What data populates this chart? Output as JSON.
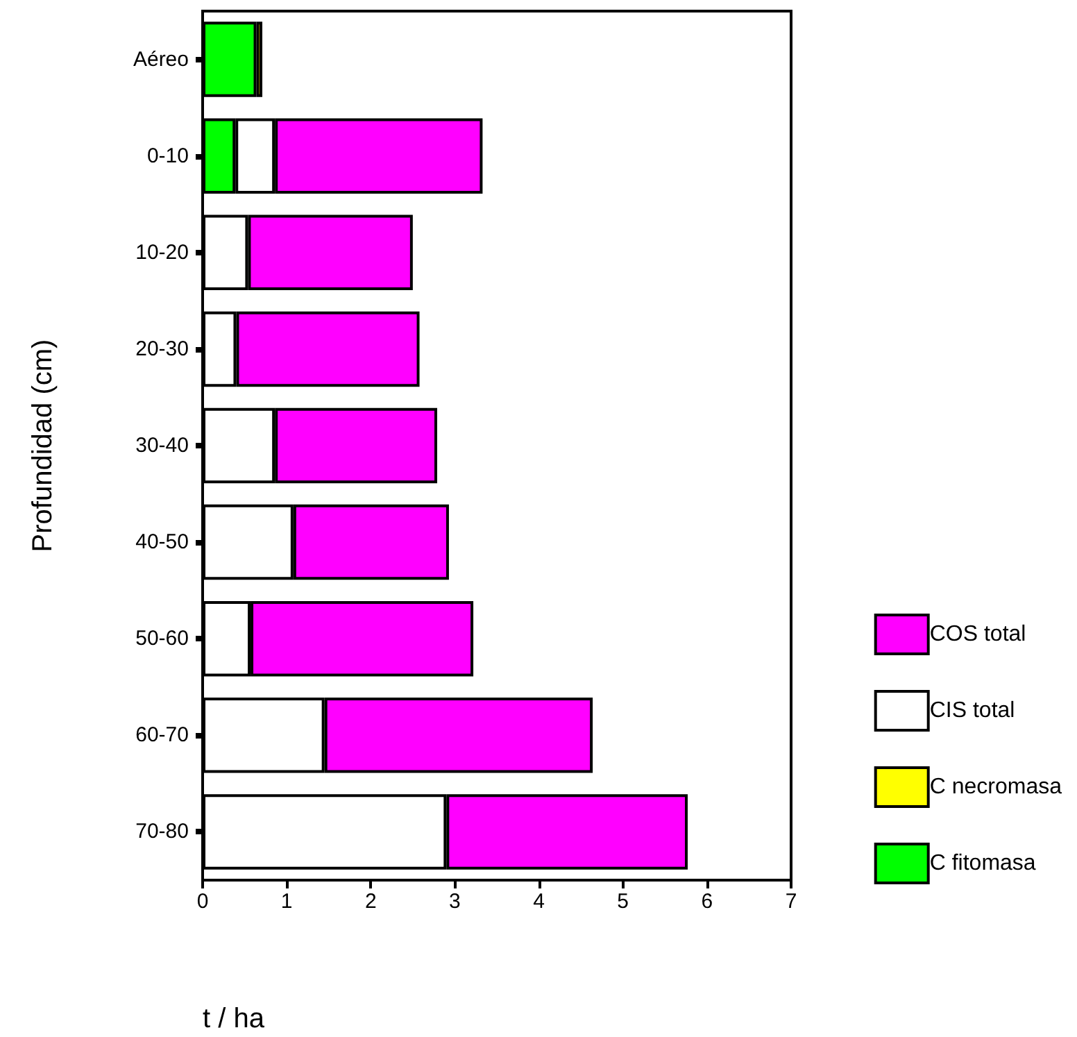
{
  "chart_data": {
    "type": "bar",
    "orientation": "horizontal",
    "stacked": true,
    "xlabel": "t / ha",
    "ylabel": "Profundidad (cm)",
    "categories": [
      "Aéreo",
      "0-10",
      "10-20",
      "20-30",
      "30-40",
      "40-50",
      "50-60",
      "60-70",
      "70-80"
    ],
    "series": [
      {
        "name": "C fitomasa",
        "color": "#00ff00",
        "values": [
          0.64,
          0.39,
          null,
          null,
          null,
          null,
          null,
          null,
          null
        ]
      },
      {
        "name": "C necromasa",
        "color": "#ffff00",
        "values": [
          0.07,
          null,
          null,
          null,
          null,
          null,
          null,
          null,
          null
        ]
      },
      {
        "name": "CIS total",
        "color": "#ffffff",
        "values": [
          null,
          0.47,
          0.54,
          0.4,
          0.86,
          1.08,
          0.57,
          1.45,
          2.9
        ]
      },
      {
        "name": "COS total",
        "color": "#ff00ff",
        "values": [
          null,
          2.47,
          1.96,
          2.18,
          1.93,
          1.85,
          2.65,
          3.19,
          2.87
        ]
      }
    ],
    "xlim": [
      0,
      7
    ],
    "xticks": [
      0,
      1,
      2,
      3,
      4,
      5,
      6,
      7
    ],
    "grid": false,
    "legend": "bottom right"
  }
}
